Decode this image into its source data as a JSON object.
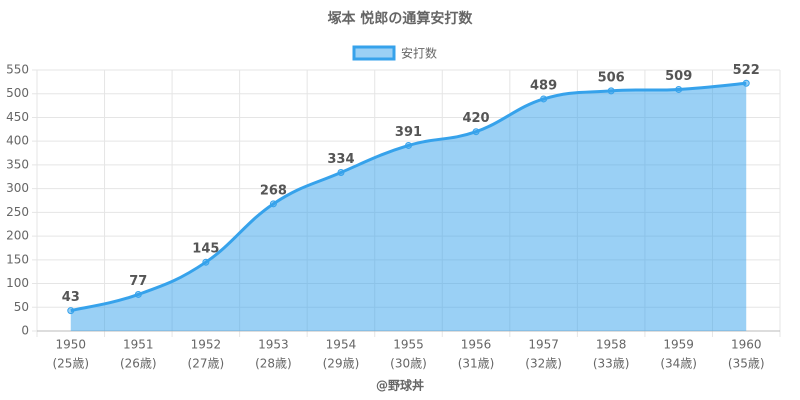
{
  "chart_data": {
    "type": "line",
    "title": "塚本 悦郎の通算安打数",
    "x_label": "@野球丼",
    "categories": [
      [
        "1950",
        "(25歳)"
      ],
      [
        "1951",
        "(26歳)"
      ],
      [
        "1952",
        "(27歳)"
      ],
      [
        "1953",
        "(28歳)"
      ],
      [
        "1954",
        "(29歳)"
      ],
      [
        "1955",
        "(30歳)"
      ],
      [
        "1956",
        "(31歳)"
      ],
      [
        "1957",
        "(32歳)"
      ],
      [
        "1958",
        "(33歳)"
      ],
      [
        "1959",
        "(34歳)"
      ],
      [
        "1960",
        "(35歳)"
      ]
    ],
    "series": [
      {
        "name": "安打数",
        "color": "#36a2eb",
        "fill": "rgba(54,162,235,0.5)",
        "values": [
          43,
          77,
          145,
          268,
          334,
          391,
          420,
          489,
          506,
          509,
          522
        ]
      }
    ],
    "ylim": [
      0,
      550
    ],
    "yticks": [
      0,
      50,
      100,
      150,
      200,
      250,
      300,
      350,
      400,
      450,
      500,
      550
    ],
    "grid": true,
    "legend": "top"
  }
}
